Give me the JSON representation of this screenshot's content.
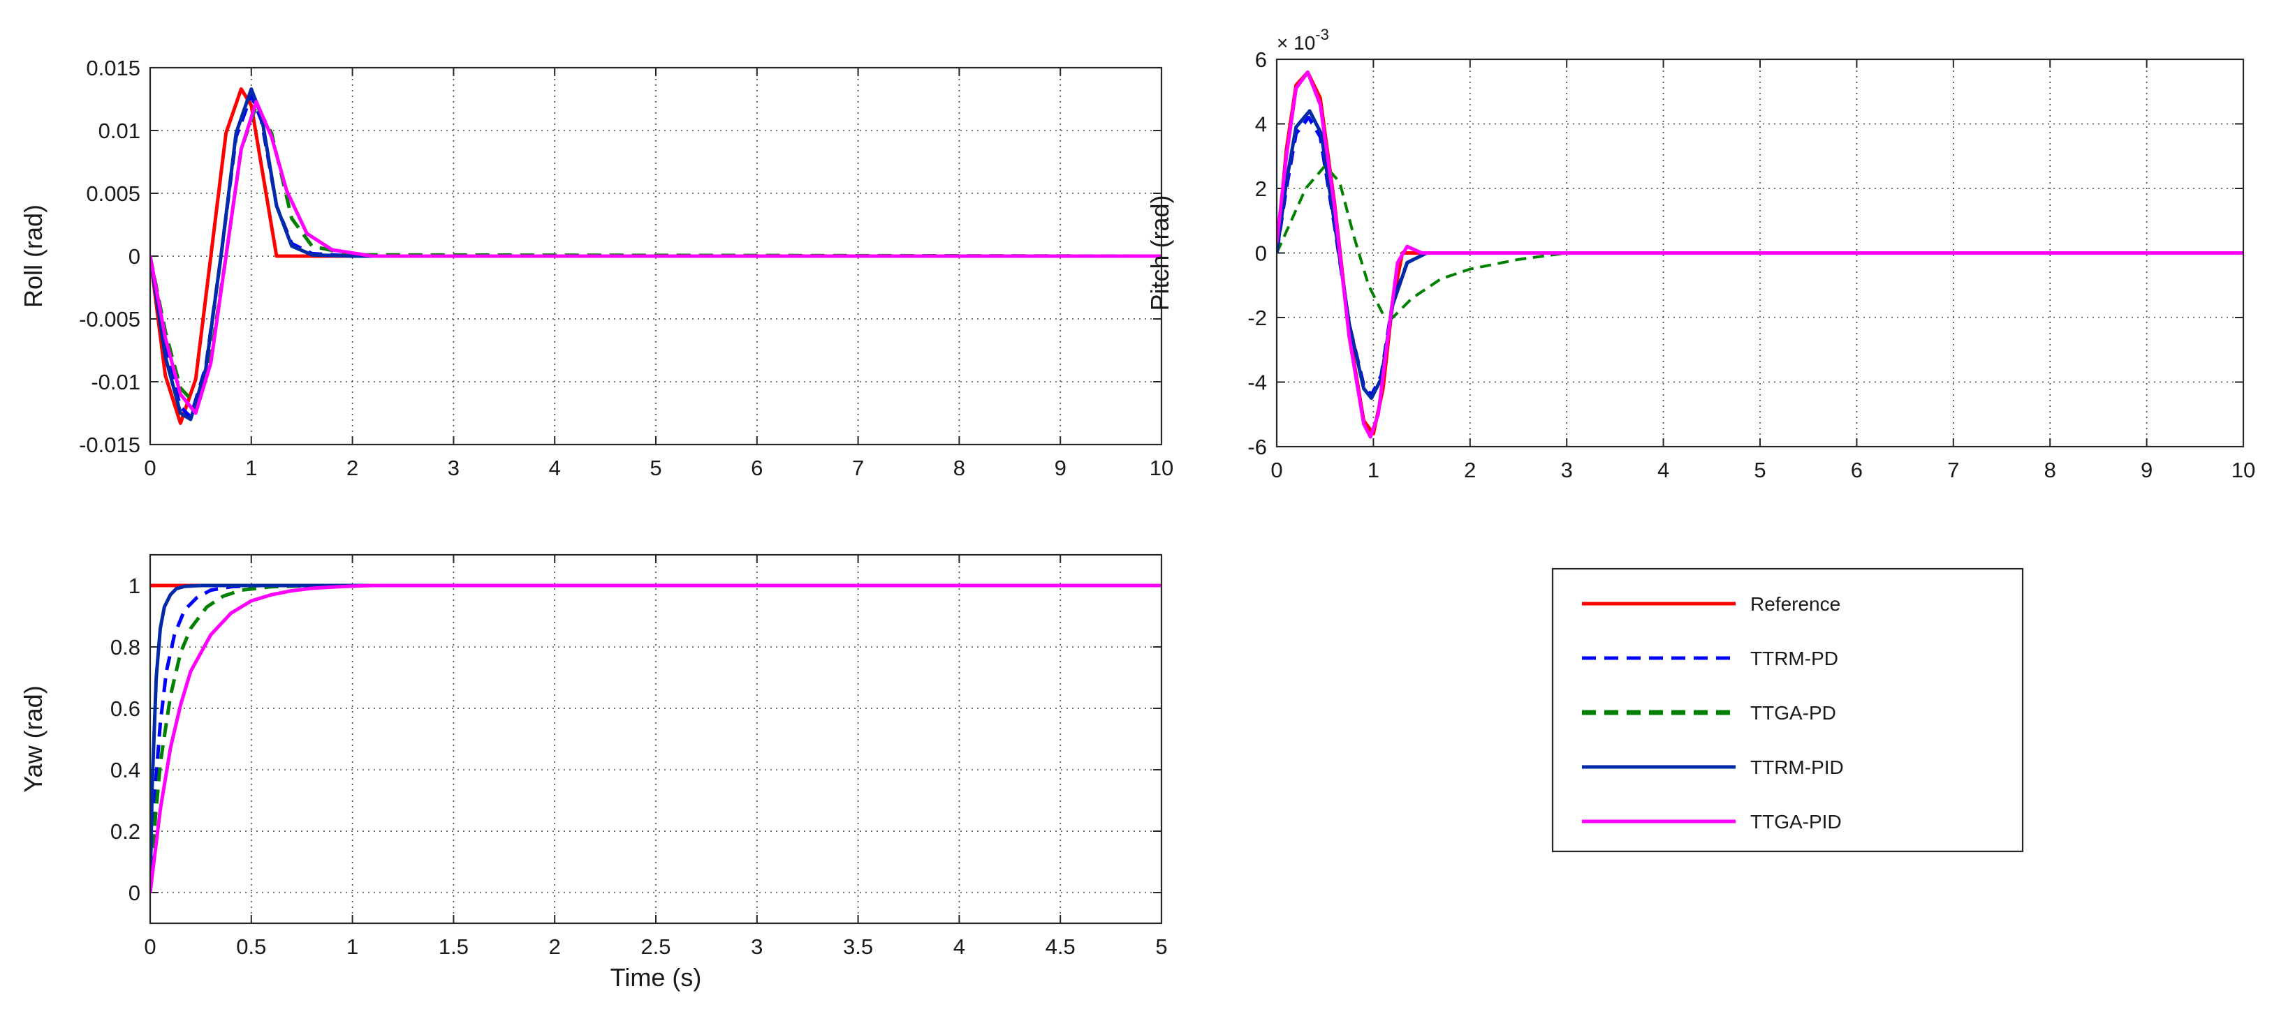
{
  "chart_data": [
    {
      "id": "roll",
      "type": "line",
      "xlabel": "",
      "ylabel": "Roll (rad)",
      "xlim": [
        0,
        10
      ],
      "ylim": [
        -0.015,
        0.015
      ],
      "xticks": [
        0,
        1,
        2,
        3,
        4,
        5,
        6,
        7,
        8,
        9,
        10
      ],
      "xtick_labels": [
        "0",
        "1",
        "2",
        "3",
        "4",
        "5",
        "6",
        "7",
        "8",
        "9",
        "10"
      ],
      "yticks": [
        -0.015,
        -0.01,
        -0.005,
        0,
        0.005,
        0.01,
        0.015
      ],
      "ytick_labels": [
        "-0.015",
        "-0.01",
        "-0.005",
        "0",
        "0.005",
        "0.01",
        "0.015"
      ],
      "grid": true,
      "series": [
        {
          "name": "Reference",
          "color": "#ff0000",
          "dash": "solid",
          "width": 5,
          "x": [
            0,
            0.15,
            0.3,
            0.45,
            0.6,
            0.75,
            0.9,
            1.0,
            1.1,
            1.25,
            10
          ],
          "y": [
            0,
            -0.0095,
            -0.0133,
            -0.0098,
            0,
            0.0098,
            0.0133,
            0.012,
            0.0072,
            0,
            0
          ]
        },
        {
          "name": "TTRM-PD",
          "color": "#0000ff",
          "dash": "dashed",
          "width": 5,
          "x": [
            0,
            0.15,
            0.3,
            0.4,
            0.55,
            0.7,
            0.85,
            1.0,
            1.1,
            1.25,
            1.4,
            1.6,
            2.0,
            10
          ],
          "y": [
            0,
            -0.0075,
            -0.012,
            -0.0128,
            -0.0088,
            0,
            0.0095,
            0.0128,
            0.0108,
            0.004,
            0.001,
            0.0002,
            0,
            0
          ]
        },
        {
          "name": "TTGA-PD",
          "color": "#008000",
          "dash": "dashed",
          "width": 5,
          "x": [
            0,
            0.15,
            0.3,
            0.45,
            0.6,
            0.75,
            0.9,
            1.05,
            1.2,
            1.4,
            1.6,
            2.0,
            10
          ],
          "y": [
            0,
            -0.006,
            -0.0105,
            -0.0118,
            -0.008,
            0,
            0.0085,
            0.012,
            0.0098,
            0.003,
            0.0008,
            0.0001,
            0
          ]
        },
        {
          "name": "TTRM-PID",
          "color": "#002aa8",
          "dash": "solid",
          "width": 5,
          "x": [
            0,
            0.15,
            0.3,
            0.4,
            0.55,
            0.7,
            0.85,
            1.0,
            1.1,
            1.25,
            1.4,
            1.6,
            2.0,
            10
          ],
          "y": [
            0,
            -0.008,
            -0.0125,
            -0.013,
            -0.009,
            0,
            0.0098,
            0.0133,
            0.0112,
            0.004,
            0.0008,
            0.0001,
            0,
            0
          ]
        },
        {
          "name": "TTGA-PID",
          "color": "#ff00ff",
          "dash": "solid",
          "width": 5,
          "x": [
            0,
            0.15,
            0.3,
            0.45,
            0.6,
            0.75,
            0.9,
            1.05,
            1.2,
            1.35,
            1.55,
            1.8,
            2.2,
            10
          ],
          "y": [
            0,
            -0.0065,
            -0.011,
            -0.0125,
            -0.0085,
            0,
            0.0085,
            0.0123,
            0.0095,
            0.0052,
            0.0018,
            0.0005,
            0,
            0
          ]
        }
      ]
    },
    {
      "id": "pitch",
      "type": "line",
      "xlabel": "",
      "ylabel": "Pitch (rad)",
      "y_exponent": "× 10",
      "y_exponent_power": "-3",
      "xlim": [
        0,
        10
      ],
      "ylim": [
        -6,
        6
      ],
      "xticks": [
        0,
        1,
        2,
        3,
        4,
        5,
        6,
        7,
        8,
        9,
        10
      ],
      "xtick_labels": [
        "0",
        "1",
        "2",
        "3",
        "4",
        "5",
        "6",
        "7",
        "8",
        "9",
        "10"
      ],
      "yticks": [
        -6,
        -4,
        -2,
        0,
        2,
        4,
        6
      ],
      "ytick_labels": [
        "-6",
        "-4",
        "-2",
        "0",
        "2",
        "4",
        "6"
      ],
      "grid": true,
      "series": [
        {
          "name": "Reference",
          "color": "#ff0000",
          "dash": "solid",
          "width": 5,
          "x": [
            0,
            0.1,
            0.2,
            0.32,
            0.45,
            0.6,
            0.75,
            0.9,
            1.0,
            1.1,
            1.2,
            1.3,
            10
          ],
          "y": [
            0,
            3.2,
            5.2,
            5.6,
            4.8,
            1.5,
            -2.5,
            -5.2,
            -5.6,
            -4.2,
            -1.5,
            0,
            0
          ]
        },
        {
          "name": "TTRM-PD",
          "color": "#0000ff",
          "dash": "dashed",
          "width": 5,
          "x": [
            0,
            0.1,
            0.2,
            0.33,
            0.45,
            0.6,
            0.75,
            0.9,
            0.98,
            1.08,
            1.2,
            1.35,
            1.55,
            8.5
          ],
          "y": [
            0,
            2.0,
            3.7,
            4.2,
            3.6,
            0.8,
            -2.2,
            -4.1,
            -4.4,
            -3.8,
            -1.5,
            -0.3,
            0,
            0
          ]
        },
        {
          "name": "TTGA-PD",
          "color": "#008000",
          "dash": "dashed",
          "width": 4,
          "x": [
            0,
            0.15,
            0.3,
            0.5,
            0.65,
            0.8,
            0.95,
            1.1,
            1.2,
            1.4,
            1.7,
            2.0,
            2.5,
            3.0,
            10
          ],
          "y": [
            0,
            1.0,
            2.0,
            2.7,
            2.2,
            0.5,
            -1.0,
            -1.9,
            -2.0,
            -1.4,
            -0.8,
            -0.5,
            -0.2,
            0,
            0
          ]
        },
        {
          "name": "TTRM-PID",
          "color": "#002aa8",
          "dash": "solid",
          "width": 5,
          "x": [
            0,
            0.1,
            0.2,
            0.34,
            0.46,
            0.6,
            0.75,
            0.9,
            0.98,
            1.08,
            1.2,
            1.35,
            1.55,
            8.5
          ],
          "y": [
            0,
            2.2,
            3.9,
            4.4,
            3.7,
            0.9,
            -2.2,
            -4.2,
            -4.5,
            -3.9,
            -1.6,
            -0.3,
            0,
            0
          ]
        },
        {
          "name": "TTGA-PID",
          "color": "#ff00ff",
          "dash": "solid",
          "width": 5,
          "x": [
            0,
            0.1,
            0.2,
            0.32,
            0.45,
            0.6,
            0.75,
            0.9,
            0.97,
            1.05,
            1.15,
            1.25,
            1.35,
            1.5,
            10
          ],
          "y": [
            0.3,
            3.0,
            5.1,
            5.6,
            4.6,
            1.4,
            -2.6,
            -5.3,
            -5.7,
            -5.0,
            -2.6,
            -0.3,
            0.2,
            0,
            0
          ]
        }
      ]
    },
    {
      "id": "yaw",
      "type": "line",
      "xlabel": "Time (s)",
      "ylabel": "Yaw (rad)",
      "xlim": [
        0,
        5
      ],
      "ylim": [
        -0.1,
        1.1
      ],
      "xticks": [
        0,
        0.5,
        1,
        1.5,
        2,
        2.5,
        3,
        3.5,
        4,
        4.5,
        5
      ],
      "xtick_labels": [
        "0",
        "0.5",
        "1",
        "1.5",
        "2",
        "2.5",
        "3",
        "3.5",
        "4",
        "4.5",
        "5"
      ],
      "yticks": [
        0,
        0.2,
        0.4,
        0.6,
        0.8,
        1
      ],
      "ytick_labels": [
        "0",
        "0.2",
        "0.4",
        "0.6",
        "0.8",
        "1"
      ],
      "grid": true,
      "series": [
        {
          "name": "Reference",
          "color": "#ff0000",
          "dash": "solid",
          "width": 5,
          "x": [
            0,
            5
          ],
          "y": [
            1,
            1
          ]
        },
        {
          "name": "TTRM-PD",
          "color": "#0000ff",
          "dash": "dashed",
          "width": 5,
          "x": [
            0,
            0.02,
            0.05,
            0.08,
            0.12,
            0.17,
            0.23,
            0.3,
            0.4,
            0.55,
            5
          ],
          "y": [
            0,
            0.3,
            0.55,
            0.72,
            0.84,
            0.92,
            0.96,
            0.985,
            0.996,
            1,
            1
          ]
        },
        {
          "name": "TTGA-PD",
          "color": "#008000",
          "dash": "dashed",
          "width": 5,
          "x": [
            0,
            0.02,
            0.05,
            0.1,
            0.15,
            0.2,
            0.28,
            0.36,
            0.45,
            0.6,
            0.8,
            5
          ],
          "y": [
            0,
            0.2,
            0.42,
            0.64,
            0.78,
            0.86,
            0.93,
            0.965,
            0.985,
            0.996,
            1,
            1
          ]
        },
        {
          "name": "TTRM-PID",
          "color": "#002aa8",
          "dash": "solid",
          "width": 5,
          "x": [
            0,
            0.01,
            0.03,
            0.05,
            0.07,
            0.1,
            0.13,
            0.17,
            0.25,
            0.4,
            5
          ],
          "y": [
            0,
            0.35,
            0.7,
            0.86,
            0.93,
            0.97,
            0.99,
            0.997,
            1,
            1,
            1
          ]
        },
        {
          "name": "TTGA-PID",
          "color": "#ff00ff",
          "dash": "solid",
          "width": 5,
          "x": [
            0,
            0.05,
            0.1,
            0.15,
            0.2,
            0.3,
            0.4,
            0.5,
            0.6,
            0.7,
            0.8,
            0.9,
            1.0,
            1.1,
            5
          ],
          "y": [
            0,
            0.27,
            0.47,
            0.61,
            0.72,
            0.84,
            0.91,
            0.95,
            0.97,
            0.983,
            0.991,
            0.995,
            0.998,
            1,
            1
          ]
        }
      ]
    }
  ],
  "legend": {
    "placement": "bottom-right",
    "entries": [
      {
        "name": "Reference",
        "color": "#ff0000",
        "dash": "solid",
        "width": 5
      },
      {
        "name": "TTRM-PD",
        "color": "#0000ff",
        "dash": "dashed",
        "width": 5
      },
      {
        "name": "TTGA-PD",
        "color": "#008000",
        "dash": "dashed",
        "width": 7
      },
      {
        "name": "TTRM-PID",
        "color": "#002aa8",
        "dash": "solid",
        "width": 5
      },
      {
        "name": "TTGA-PID",
        "color": "#ff00ff",
        "dash": "solid",
        "width": 5
      }
    ]
  }
}
